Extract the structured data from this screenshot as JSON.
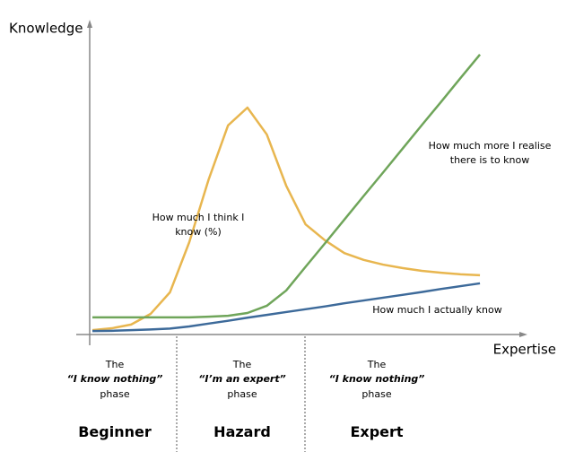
{
  "chart_data": {
    "type": "line",
    "y_label": "Knowledge",
    "x_label": "Expertise",
    "x": [
      0,
      1,
      2,
      3,
      4,
      5,
      6,
      7,
      8,
      9,
      10,
      11,
      12,
      13,
      14,
      15,
      16,
      17,
      18,
      19,
      20
    ],
    "xlim": [
      -0.14,
      20.46
    ],
    "ylim": [
      0,
      100
    ],
    "series": [
      {
        "name": "How much I think I know (%)",
        "color": "#e8b64f",
        "values": [
          1.4,
          2,
          3.2,
          6.6,
          13.5,
          29.6,
          49.7,
          67,
          72.7,
          64.1,
          47.7,
          35.3,
          30.2,
          26.1,
          23.9,
          22.4,
          21.3,
          20.4,
          19.8,
          19.3,
          19
        ]
      },
      {
        "name": "How much more I realise there is to know",
        "color": "#6fa55a",
        "values": [
          5.5,
          5.5,
          5.5,
          5.5,
          5.5,
          5.5,
          5.7,
          6,
          6.9,
          9.2,
          14.1,
          21.7,
          29.2,
          36.8,
          44.4,
          51.9,
          59.5,
          67.1,
          74.6,
          82.2,
          89.7
        ]
      },
      {
        "name": "How much I actually know",
        "color": "#3d6a9a",
        "values": [
          1.1,
          1.2,
          1.4,
          1.6,
          1.9,
          2.6,
          3.5,
          4.4,
          5.4,
          6.3,
          7.2,
          8.1,
          9,
          10,
          10.9,
          11.8,
          12.7,
          13.6,
          14.6,
          15.5,
          16.4
        ]
      }
    ],
    "phases": [
      {
        "intro": "The",
        "quote": "“I know nothing”",
        "outro": "phase",
        "name": "Beginner"
      },
      {
        "intro": "The",
        "quote": "“I’m an expert”",
        "outro": "phase",
        "name": "Hazard"
      },
      {
        "intro": "The",
        "quote": "“I know nothing”",
        "outro": "phase",
        "name": "Expert"
      }
    ]
  }
}
